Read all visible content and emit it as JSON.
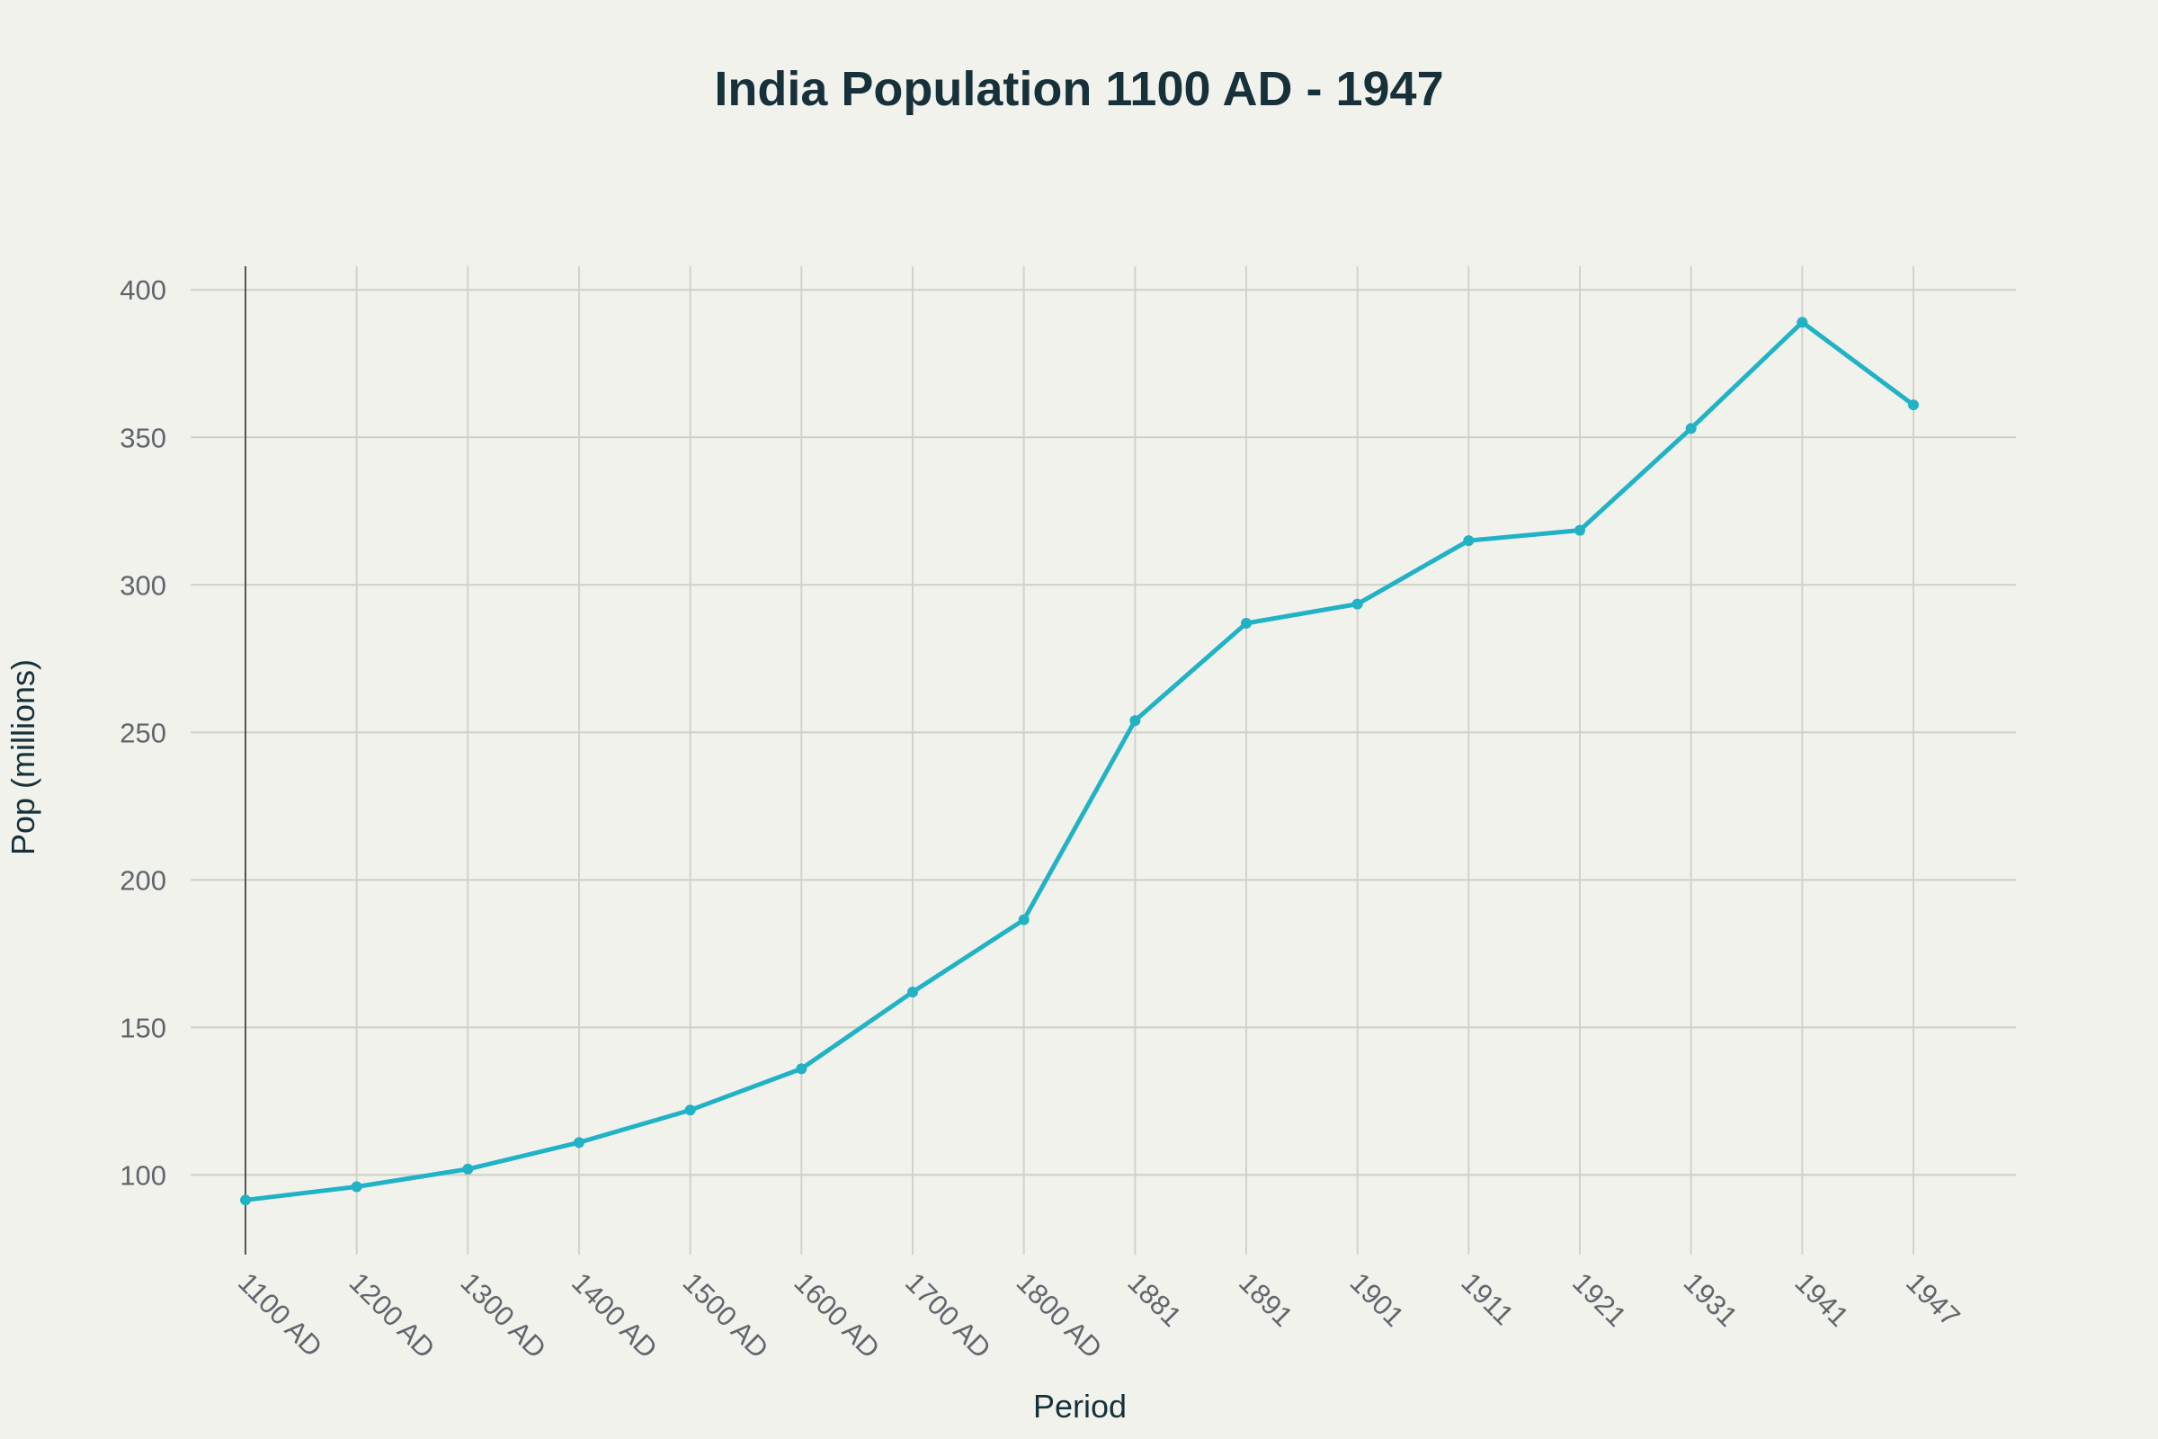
{
  "chart_data": {
    "type": "line",
    "title": "India Population 1100 AD - 1947",
    "xlabel": "Period",
    "ylabel": "Pop (millions)",
    "categories": [
      "1100 AD",
      "1200 AD",
      "1300 AD",
      "1400 AD",
      "1500 AD",
      "1600 AD",
      "1700 AD",
      "1800 AD",
      "1881",
      "1891",
      "1901",
      "1911",
      "1921",
      "1931",
      "1941",
      "1947"
    ],
    "series": [
      {
        "values": [
          91.5,
          96,
          102,
          111,
          122,
          136,
          162,
          186.5,
          254,
          287,
          293.5,
          315,
          318.5,
          353,
          389,
          361
        ],
        "color": "#21b2c6"
      }
    ],
    "ylim": [
      73,
      408
    ],
    "yticks": [
      100,
      150,
      200,
      250,
      300,
      350,
      400
    ],
    "grid": true,
    "legend": "none"
  }
}
